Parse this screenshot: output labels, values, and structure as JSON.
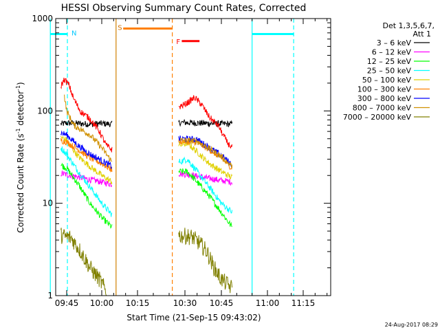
{
  "chart_data": {
    "type": "line",
    "title": "HESSI Observing Summary Count Rates, Corrected",
    "xlabel": "Start Time (21-Sep-15 09:43:02)",
    "ylabel": "Corrected Count Rate (s",
    "ylabel_sup": "-1",
    "ylabel_mid": " detector",
    "ylabel_end": ")",
    "x_ticks": [
      "09:45",
      "10:00",
      "10:15",
      "10:30",
      "10:45",
      "11:00",
      "11:15"
    ],
    "x_tick_minutes": [
      0,
      15,
      30,
      45,
      60,
      75,
      90
    ],
    "x_origin_label": "09:45",
    "y_scale": "log",
    "y_ticks": [
      {
        "v": 1,
        "label": "1"
      },
      {
        "v": 10,
        "label": "10"
      },
      {
        "v": 100,
        "label": "100"
      },
      {
        "v": 1000,
        "label": "1000"
      }
    ],
    "ylim": [
      1,
      1000
    ],
    "legend_title_1": "Det 1,3,5,6,7,",
    "legend_title_2": "Att 1",
    "legend_position": "right",
    "series": [
      {
        "name": "3 – 6 keV",
        "color": "#000000",
        "segments": [
          [
            [
              -2.5,
              72
            ],
            [
              0,
              74
            ],
            [
              5,
              73
            ],
            [
              10,
              72
            ],
            [
              15,
              73
            ],
            [
              19.3,
              72
            ]
          ],
          [
            [
              43,
              75
            ],
            [
              50,
              74
            ],
            [
              57,
              73
            ],
            [
              63.5,
              72
            ]
          ]
        ]
      },
      {
        "name": "6 – 12 keV",
        "color": "#ff00ff",
        "segments": [
          [
            [
              -2.5,
              21
            ],
            [
              2,
              20
            ],
            [
              6,
              19
            ],
            [
              10,
              18
            ],
            [
              15,
              17
            ],
            [
              19.3,
              16
            ]
          ],
          [
            [
              43,
              21
            ],
            [
              48,
              20
            ],
            [
              53,
              19
            ],
            [
              58,
              18
            ],
            [
              63.5,
              17
            ]
          ]
        ]
      },
      {
        "name": "12 – 25 keV",
        "color": "#00ff00",
        "segments": [
          [
            [
              -2.5,
              26
            ],
            [
              0,
              24
            ],
            [
              5,
              16
            ],
            [
              10,
              10
            ],
            [
              15,
              7
            ],
            [
              19.3,
              5.5
            ]
          ],
          [
            [
              43,
              22
            ],
            [
              46,
              22
            ],
            [
              50,
              17
            ],
            [
              55,
              12
            ],
            [
              60,
              8
            ],
            [
              63.5,
              5.5
            ]
          ]
        ]
      },
      {
        "name": "25 – 50 keV",
        "color": "#00ffff",
        "segments": [
          [
            [
              -2.5,
              40
            ],
            [
              0,
              34
            ],
            [
              5,
              22
            ],
            [
              10,
              15
            ],
            [
              15,
              10
            ],
            [
              19.3,
              7.5
            ]
          ],
          [
            [
              43,
              28
            ],
            [
              46,
              30
            ],
            [
              50,
              22
            ],
            [
              55,
              15
            ],
            [
              60,
              10
            ],
            [
              63.5,
              8
            ]
          ]
        ]
      },
      {
        "name": "50 – 100 keV",
        "color": "#e0d000",
        "segments": [
          [
            [
              -2.5,
              52
            ],
            [
              0,
              48
            ],
            [
              5,
              32
            ],
            [
              10,
              25
            ],
            [
              15,
              20
            ],
            [
              19.3,
              17
            ]
          ],
          [
            [
              43,
              42
            ],
            [
              46,
              45
            ],
            [
              50,
              36
            ],
            [
              55,
              27
            ],
            [
              60,
              22
            ],
            [
              63.5,
              19
            ]
          ]
        ]
      },
      {
        "name": "100 – 300 keV",
        "color": "#ff8000",
        "segments": [
          [
            [
              -2.5,
              48
            ],
            [
              0,
              46
            ],
            [
              5,
              38
            ],
            [
              10,
              31
            ],
            [
              15,
              27
            ],
            [
              19.3,
              23
            ]
          ],
          [
            [
              43,
              47
            ],
            [
              50,
              46
            ],
            [
              55,
              38
            ],
            [
              60,
              31
            ],
            [
              63.5,
              24
            ]
          ]
        ]
      },
      {
        "name": "300 – 800 keV",
        "color": "#0000ff",
        "segments": [
          [
            [
              -2.5,
              58
            ],
            [
              0,
              55
            ],
            [
              5,
              42
            ],
            [
              10,
              34
            ],
            [
              15,
              29
            ],
            [
              19.3,
              25
            ]
          ],
          [
            [
              43,
              50
            ],
            [
              50,
              49
            ],
            [
              55,
              40
            ],
            [
              60,
              33
            ],
            [
              63.5,
              26
            ]
          ]
        ]
      },
      {
        "name": "800 – 7000 keV",
        "color": "#d09000",
        "segments": [
          [
            [
              -1,
              145
            ],
            [
              0,
              100
            ],
            [
              3,
              70
            ],
            [
              10,
              55
            ],
            [
              15,
              40
            ],
            [
              19.3,
              28
            ]
          ],
          [
            [
              43,
              48
            ],
            [
              50,
              47
            ],
            [
              55,
              39
            ],
            [
              60,
              32
            ],
            [
              63.5,
              25
            ]
          ]
        ]
      },
      {
        "name": "7000 – 20000 keV",
        "color": "#808000",
        "segments": [
          [
            [
              -2.5,
              4.5
            ],
            [
              2,
              4.2
            ],
            [
              6,
              3
            ],
            [
              10,
              2
            ],
            [
              14,
              1.5
            ],
            [
              17,
              1.1
            ]
          ],
          [
            [
              43,
              4.5
            ],
            [
              48,
              4.3
            ],
            [
              51,
              3.7
            ],
            [
              54,
              3
            ],
            [
              57,
              2
            ],
            [
              60,
              1.5
            ],
            [
              63.5,
              1.2
            ]
          ]
        ]
      }
    ],
    "extra_series": [
      {
        "color": "#ff0000",
        "segments": [
          [
            [
              -2.5,
              185
            ],
            [
              -1,
              220
            ],
            [
              1,
              190
            ],
            [
              3,
              135
            ],
            [
              6,
              98
            ],
            [
              10,
              82
            ],
            [
              14,
              60
            ],
            [
              17,
              42
            ],
            [
              19.3,
              38
            ]
          ],
          [
            [
              43,
              110
            ],
            [
              46,
              122
            ],
            [
              49,
              140
            ],
            [
              52,
              116
            ],
            [
              55,
              86
            ],
            [
              59,
              68
            ],
            [
              62,
              45
            ],
            [
              63.5,
              40
            ]
          ]
        ]
      }
    ],
    "bars": [
      {
        "label": "N",
        "label_color": "#00c8ff",
        "color": "#00ffff",
        "y": 680,
        "x0": -7,
        "x1": 0.3
      },
      {
        "label": "",
        "color": "#00ffff",
        "y": 680,
        "x0": 70,
        "x1": 86
      },
      {
        "label": "S",
        "label_color": "#d07000",
        "color": "#ff8000",
        "y": 780,
        "x0": 24,
        "x1": 41
      },
      {
        "label": "F",
        "label_color": "#ff0000",
        "color": "#ff0000",
        "y": 570,
        "x0": 44,
        "x1": 51
      }
    ],
    "vlines": [
      {
        "x": -7,
        "color": "#00ffff",
        "dash": false
      },
      {
        "x": 0.3,
        "color": "#00ffff",
        "dash": true
      },
      {
        "x": 21,
        "color": "#d08000",
        "dash": false
      },
      {
        "x": 41,
        "color": "#ff8000",
        "dash": true
      },
      {
        "x": 70,
        "color": "#00ffff",
        "dash": false
      },
      {
        "x": 86,
        "color": "#00ffff",
        "dash": true
      }
    ]
  },
  "timestamp": "24-Aug-2017 08:29"
}
